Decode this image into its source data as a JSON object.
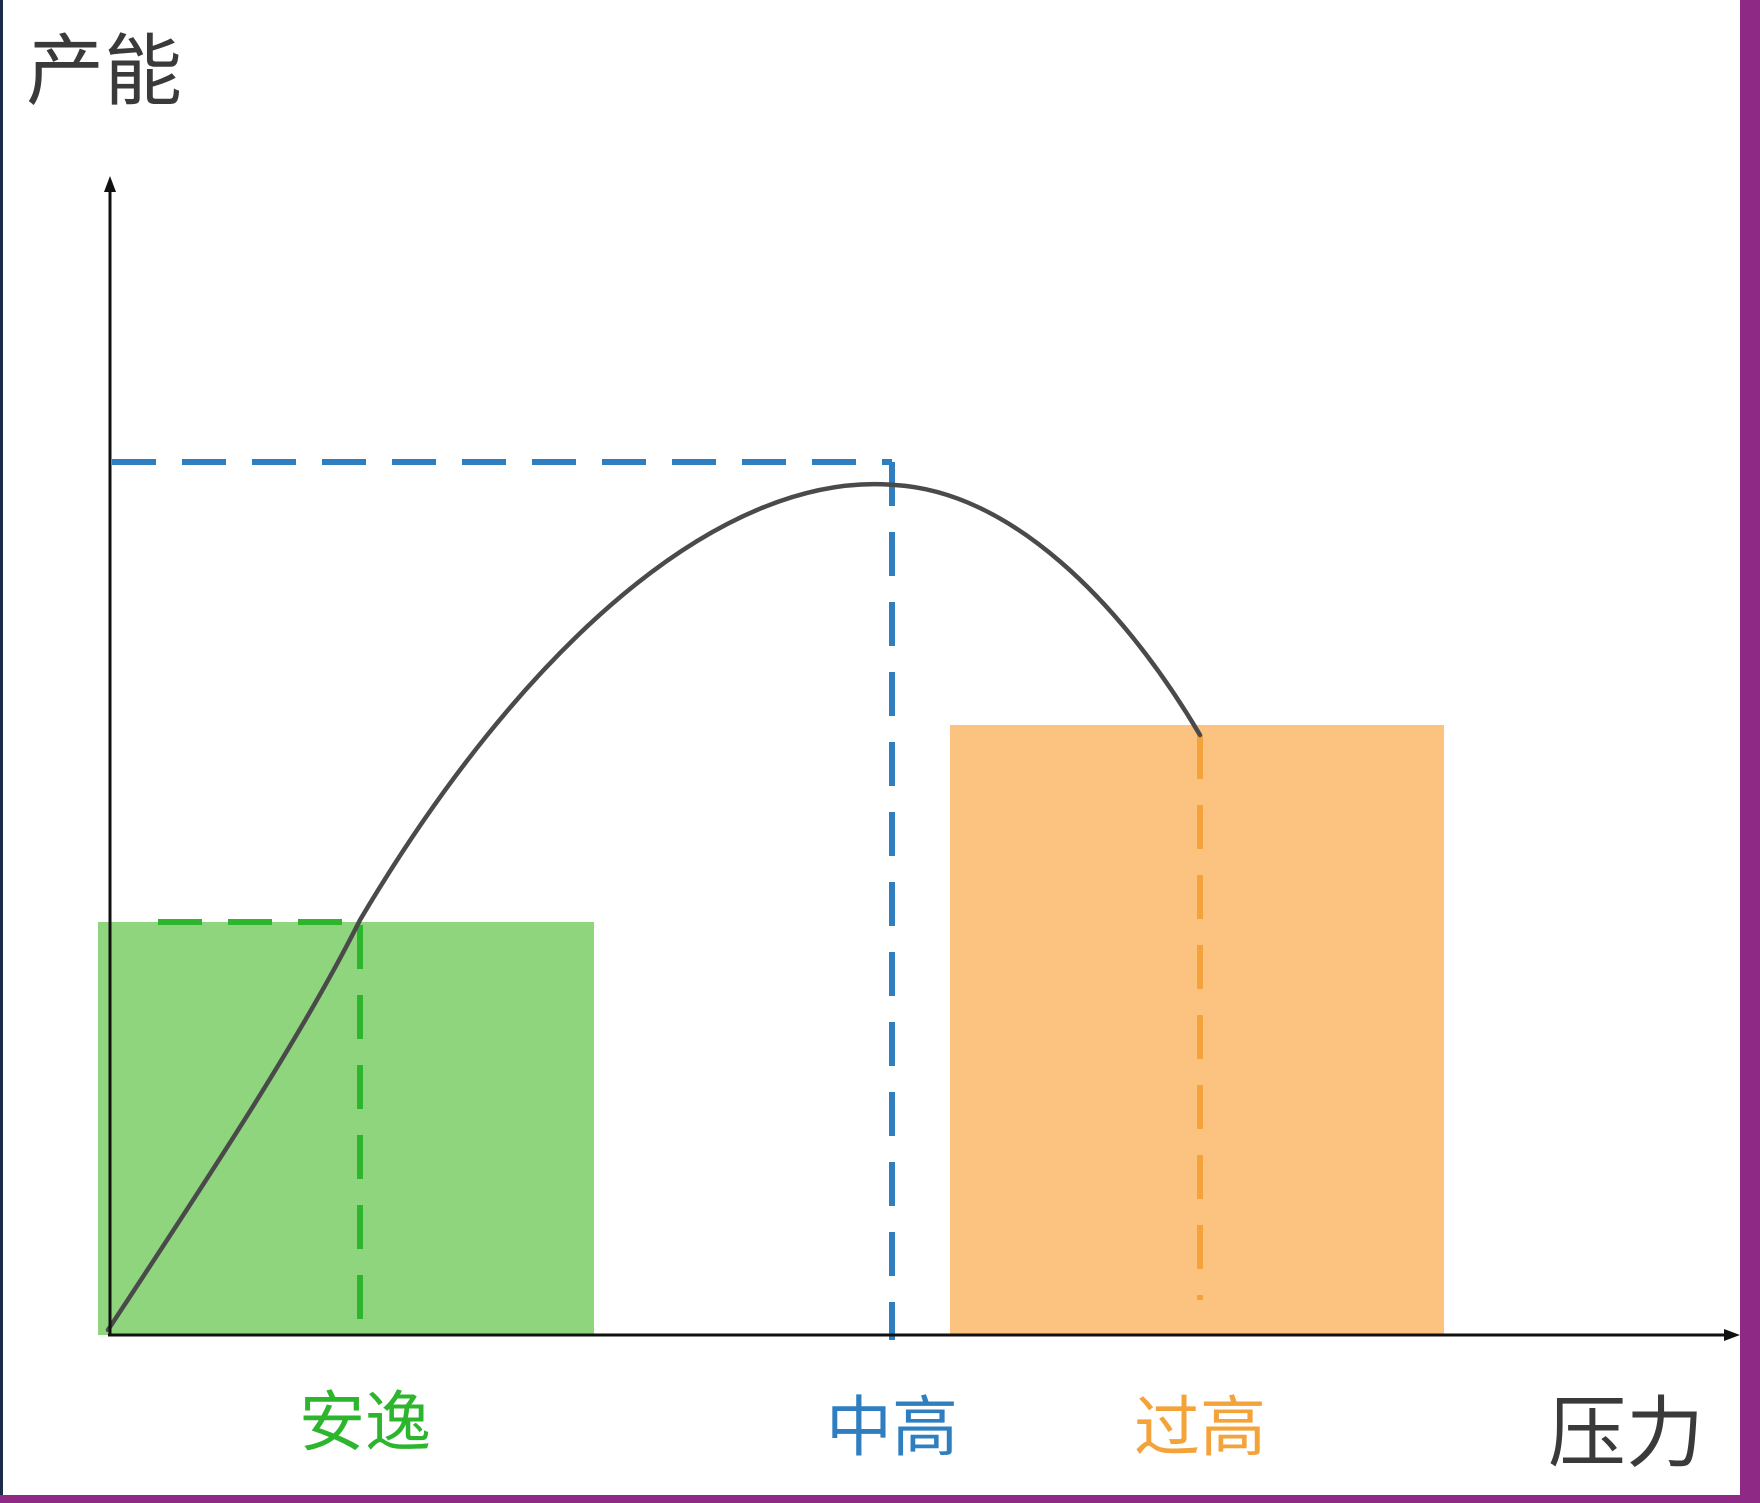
{
  "diagram": {
    "y_axis_label": "产能",
    "x_axis_label": "压力",
    "zones": [
      {
        "label": "安逸",
        "color": "#2db52d"
      },
      {
        "label": "中高",
        "color": "#2f7fc0"
      },
      {
        "label": "过高",
        "color": "#f4a23a"
      }
    ],
    "colors": {
      "green_block": "#8fd57e",
      "orange_block": "#fcc27f",
      "curve": "#4a4a4a",
      "axis": "#111111"
    }
  }
}
